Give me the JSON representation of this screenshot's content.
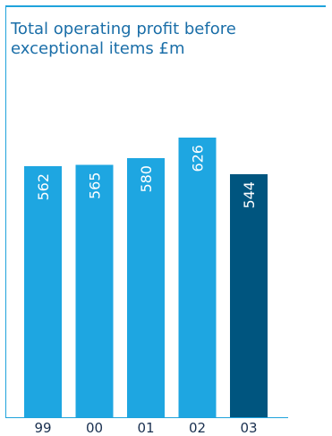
{
  "chart_data": {
    "type": "bar",
    "title": "Total operating profit before exceptional items",
    "unit": "£m",
    "categories": [
      "99",
      "00",
      "01",
      "02",
      "03"
    ],
    "values": [
      562,
      565,
      580,
      626,
      544
    ],
    "highlight_index": 4,
    "colors": {
      "bar": "#1ea6e1",
      "highlight": "#00557f",
      "accent": "#1fa3dc"
    },
    "grid": false,
    "legend": "none"
  }
}
